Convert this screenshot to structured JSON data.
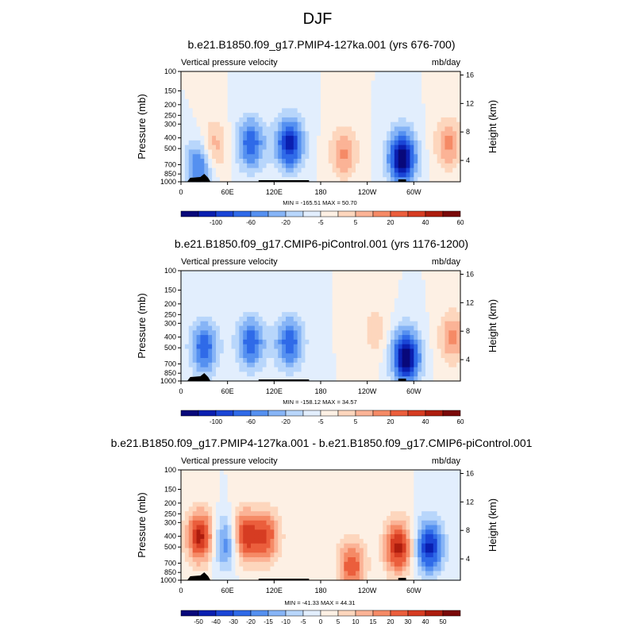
{
  "figure": {
    "title": "DJF"
  },
  "colors": {
    "levels_main": [
      "#08087a",
      "#0a1fb0",
      "#1a45d6",
      "#2f6ae8",
      "#5590f0",
      "#86b4f6",
      "#b8d6fb",
      "#e2eefd",
      "#fdf0e4",
      "#fdd6bd",
      "#fbb396",
      "#f58a66",
      "#eb5e3c",
      "#d63c22",
      "#ad1d0e",
      "#7a0808"
    ],
    "levels_diff": [
      "#08087a",
      "#0a1fb0",
      "#1a45d6",
      "#2f6ae8",
      "#5590f0",
      "#86b4f6",
      "#b8d6fb",
      "#e2eefd",
      "#fdf0e4",
      "#fdd6bd",
      "#fbb396",
      "#f58a66",
      "#eb5e3c",
      "#d63c22",
      "#ad1d0e",
      "#7a0808"
    ]
  },
  "chart_data": [
    {
      "type": "heatmap",
      "title": "b.e21.B1850.f09_g17.PMIP4-127ka.001 (yrs 676-700)",
      "left_label": "Vertical pressure velocity",
      "right_label": "mb/day",
      "ylabel": "Pressure (mb)",
      "y2label": "Height (km)",
      "x_ticks": [
        "0",
        "60E",
        "120E",
        "180",
        "120W",
        "60W"
      ],
      "y_ticks": [
        "100",
        "150",
        "200",
        "250",
        "300",
        "400",
        "500",
        "700",
        "850",
        "1000"
      ],
      "y2_ticks": [
        "16",
        "12",
        "8",
        "4"
      ],
      "stats": "MIN = -165.51   MAX =  50.70",
      "colorbar_labels": [
        "-100",
        "-60",
        "-20",
        "-5",
        "5",
        "20",
        "40",
        "60"
      ],
      "field": [
        {
          "lon": 25,
          "p": 700,
          "v": -60
        },
        {
          "lon": 40,
          "p": 500,
          "v": 40
        },
        {
          "lon": 90,
          "p": 450,
          "v": -60
        },
        {
          "lon": 140,
          "p": 450,
          "v": -80
        },
        {
          "lon": 210,
          "p": 550,
          "v": 40
        },
        {
          "lon": 285,
          "p": 600,
          "v": -100
        },
        {
          "lon": 345,
          "p": 450,
          "v": 40
        }
      ]
    },
    {
      "type": "heatmap",
      "title": "b.e21.B1850.f09_g17.CMIP6-piControl.001 (yrs 1176-1200)",
      "left_label": "Vertical pressure velocity",
      "right_label": "mb/day",
      "ylabel": "Pressure (mb)",
      "y2label": "Height (km)",
      "x_ticks": [
        "0",
        "60E",
        "120E",
        "180",
        "120W",
        "60W"
      ],
      "y_ticks": [
        "100",
        "150",
        "200",
        "250",
        "300",
        "400",
        "500",
        "700",
        "850",
        "1000"
      ],
      "y2_ticks": [
        "16",
        "12",
        "8",
        "4"
      ],
      "stats": "MIN = -158.12   MAX =  34.57",
      "colorbar_labels": [
        "-100",
        "-60",
        "-20",
        "-5",
        "5",
        "20",
        "40",
        "60"
      ],
      "field": [
        {
          "lon": 30,
          "p": 500,
          "v": -60
        },
        {
          "lon": 90,
          "p": 450,
          "v": -60
        },
        {
          "lon": 140,
          "p": 450,
          "v": -60
        },
        {
          "lon": 250,
          "p": 350,
          "v": 20
        },
        {
          "lon": 290,
          "p": 600,
          "v": -100
        },
        {
          "lon": 350,
          "p": 400,
          "v": 40
        }
      ]
    },
    {
      "type": "heatmap",
      "title": "b.e21.B1850.f09_g17.PMIP4-127ka.001 - b.e21.B1850.f09_g17.CMIP6-piControl.001",
      "left_label": "Vertical pressure velocity",
      "right_label": "mb/day",
      "ylabel": "Pressure (mb)",
      "y2label": "Height (km)",
      "x_ticks": [
        "0",
        "60E",
        "120E",
        "180",
        "120W",
        "60W"
      ],
      "y_ticks": [
        "100",
        "150",
        "200",
        "250",
        "300",
        "400",
        "500",
        "700",
        "850",
        "1000"
      ],
      "y2_ticks": [
        "16",
        "12",
        "8",
        "4"
      ],
      "stats": "MIN = -41.33   MAX =  44.31",
      "colorbar_labels": [
        "-50",
        "-40",
        "-30",
        "-20",
        "-15",
        "-10",
        "-5",
        "0",
        "5",
        "10",
        "15",
        "20",
        "30",
        "40",
        "50"
      ],
      "field": [
        {
          "lon": 25,
          "p": 400,
          "v": 40
        },
        {
          "lon": 60,
          "p": 450,
          "v": -30
        },
        {
          "lon": 80,
          "p": 400,
          "v": 40
        },
        {
          "lon": 110,
          "p": 400,
          "v": 30
        },
        {
          "lon": 220,
          "p": 750,
          "v": 30
        },
        {
          "lon": 280,
          "p": 500,
          "v": 40
        },
        {
          "lon": 320,
          "p": 500,
          "v": -40
        }
      ]
    }
  ]
}
